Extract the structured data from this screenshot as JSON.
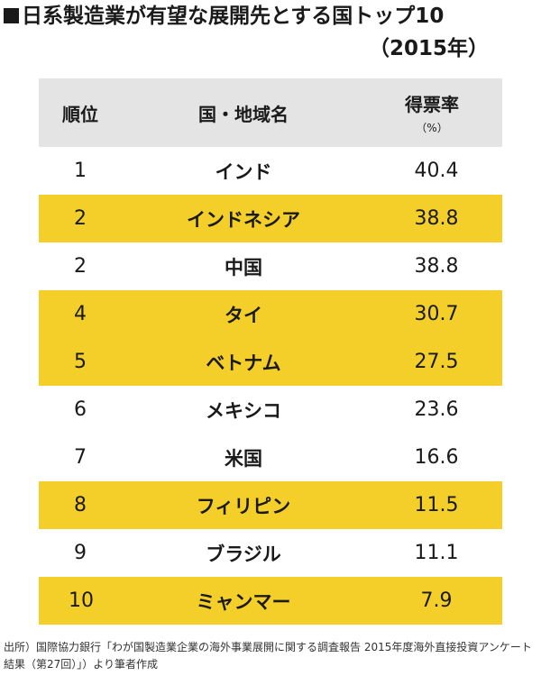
{
  "chart_data": {
    "type": "table",
    "title": "日系製造業が有望な展開先とする国トップ10",
    "subtitle": "（2015年）",
    "columns": [
      "順位",
      "国・地域名",
      "得票率"
    ],
    "unit": "（%）",
    "rows": [
      {
        "rank": "1",
        "country": "インド",
        "rate": 40.4,
        "highlight": false
      },
      {
        "rank": "2",
        "country": "インドネシア",
        "rate": 38.8,
        "highlight": true
      },
      {
        "rank": "2",
        "country": "中国",
        "rate": 38.8,
        "highlight": false
      },
      {
        "rank": "4",
        "country": "タイ",
        "rate": 30.7,
        "highlight": true
      },
      {
        "rank": "5",
        "country": "ベトナム",
        "rate": 27.5,
        "highlight": true
      },
      {
        "rank": "6",
        "country": "メキシコ",
        "rate": 23.6,
        "highlight": false
      },
      {
        "rank": "7",
        "country": "米国",
        "rate": 16.6,
        "highlight": false
      },
      {
        "rank": "8",
        "country": "フィリピン",
        "rate": 11.5,
        "highlight": true
      },
      {
        "rank": "9",
        "country": "ブラジル",
        "rate": 11.1,
        "highlight": false
      },
      {
        "rank": "10",
        "country": "ミャンマー",
        "rate": 7.9,
        "highlight": true
      }
    ]
  },
  "source": "出所）国際協力銀行「わが国製造業企業の海外事業展開に関する調査報告 2015年度海外直接投資アンケート結果（第27回）」）より筆者作成",
  "colors": {
    "highlight": "#f4cf2a",
    "header": "#e4e4e4"
  }
}
